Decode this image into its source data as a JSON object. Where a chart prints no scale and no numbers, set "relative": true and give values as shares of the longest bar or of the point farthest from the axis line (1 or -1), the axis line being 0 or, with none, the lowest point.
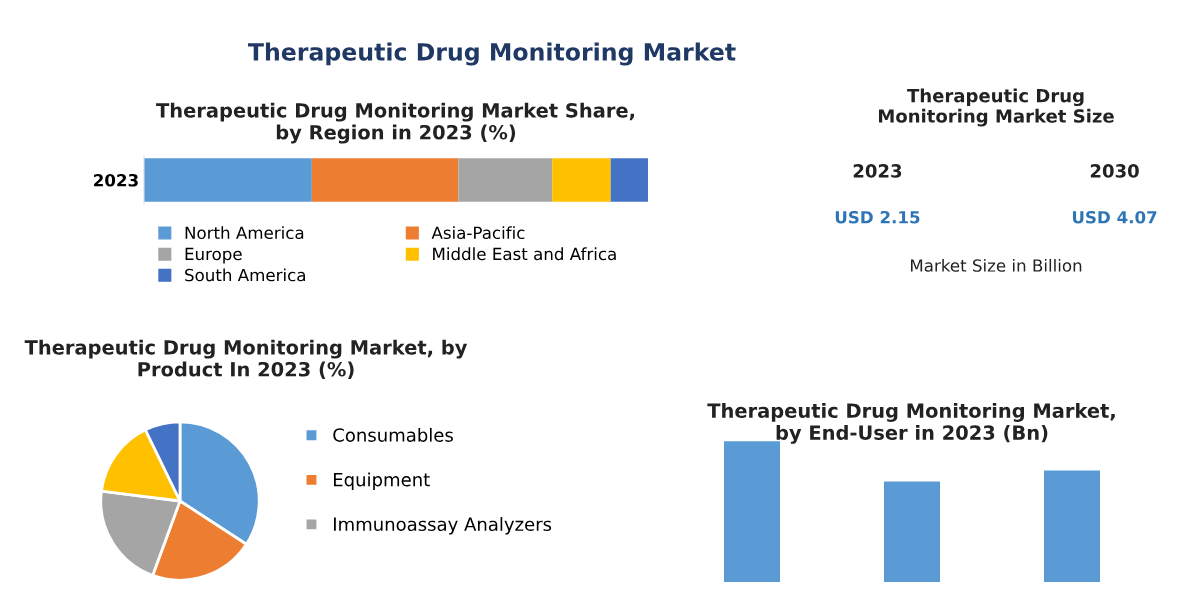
{
  "chart_data": [
    {
      "type": "other",
      "title": "Therapeutic Drug Monitoring Market"
    },
    {
      "type": "bar",
      "orientation": "horizontal",
      "stacked": true,
      "relative": true,
      "title": "Therapeutic Drug Monitoring Market Share,\nby Region in 2023 (%)",
      "categories": [
        "2023"
      ],
      "legend": "bottom",
      "series": [
        {
          "name": "North America",
          "color": "#5b9bd5",
          "values": [
            0.333
          ]
        },
        {
          "name": "Asia-Pacific",
          "color": "#ed7d31",
          "values": [
            0.291
          ]
        },
        {
          "name": "Europe",
          "color": "#a5a5a5",
          "values": [
            0.186
          ]
        },
        {
          "name": "Middle East and Africa",
          "color": "#ffc000",
          "values": [
            0.116
          ]
        },
        {
          "name": "South America",
          "color": "#4472c4",
          "values": [
            0.074
          ]
        }
      ]
    },
    {
      "type": "other",
      "title": "Therapeutic Drug\nMonitoring Market Size",
      "annotations": [
        "2023",
        "2030",
        "USD 2.15",
        "USD 4.07",
        "Market Size in Billion"
      ]
    },
    {
      "type": "pie",
      "title": "Therapeutic Drug Monitoring Market, by\nProduct In 2023 (%)",
      "legend": "right",
      "categories": [
        "Consumables",
        "Equipment",
        "Immunoassay Analyzers",
        null,
        null
      ],
      "values": [
        34.2,
        21.4,
        21.4,
        15.8,
        7.2
      ],
      "colors": [
        "#5b9bd5",
        "#ed7d31",
        "#a5a5a5",
        "#ffc000",
        "#4472c4"
      ]
    },
    {
      "type": "bar",
      "relative": true,
      "title": "Therapeutic Drug Monitoring Market,\nby End-User in 2023 (Bn)",
      "categories": [
        null,
        null,
        null
      ],
      "values": [
        1,
        0.715,
        0.792
      ],
      "color": "#5b9bd5"
    }
  ]
}
